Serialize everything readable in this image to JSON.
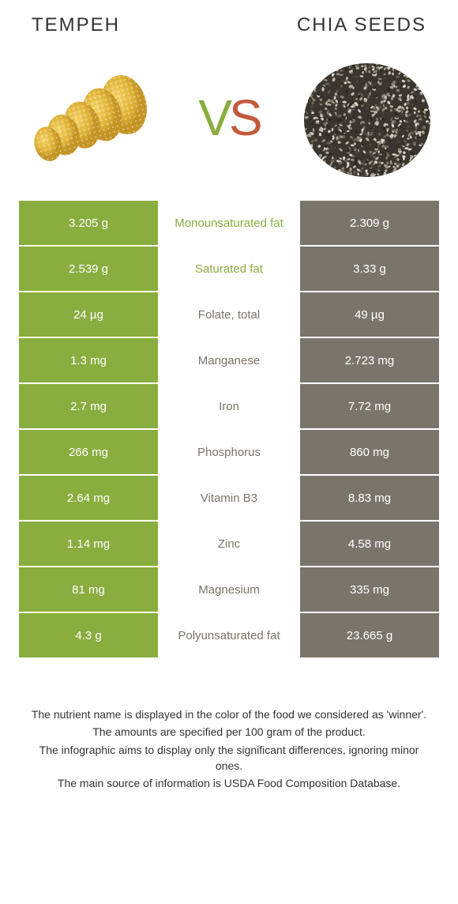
{
  "colors": {
    "left_food": "#8aad3f",
    "right_food": "#7a756a",
    "mid_bg": "#ffffff"
  },
  "header": {
    "left_title": "Tempeh",
    "right_title": "Chia seeds"
  },
  "vs": {
    "v": "V",
    "s": "S"
  },
  "rows": [
    {
      "left": "3.205 g",
      "label": "Monounsaturated fat",
      "right": "2.309 g",
      "winner": "left"
    },
    {
      "left": "2.539 g",
      "label": "Saturated fat",
      "right": "3.33 g",
      "winner": "left"
    },
    {
      "left": "24 µg",
      "label": "Folate, total",
      "right": "49 µg",
      "winner": "right"
    },
    {
      "left": "1.3 mg",
      "label": "Manganese",
      "right": "2.723 mg",
      "winner": "right"
    },
    {
      "left": "2.7 mg",
      "label": "Iron",
      "right": "7.72 mg",
      "winner": "right"
    },
    {
      "left": "266 mg",
      "label": "Phosphorus",
      "right": "860 mg",
      "winner": "right"
    },
    {
      "left": "2.64 mg",
      "label": "Vitamin B3",
      "right": "8.83 mg",
      "winner": "right"
    },
    {
      "left": "1.14 mg",
      "label": "Zinc",
      "right": "4.58 mg",
      "winner": "right"
    },
    {
      "left": "81 mg",
      "label": "Magnesium",
      "right": "335 mg",
      "winner": "right"
    },
    {
      "left": "4.3 g",
      "label": "Polyunsaturated fat",
      "right": "23.665 g",
      "winner": "right"
    }
  ],
  "footer": {
    "line1": "The nutrient name is displayed in the color of the food we considered as 'winner'.",
    "line2": "The amounts are specified per 100 gram of the product.",
    "line3": "The infographic aims to display only the significant differences, ignoring minor ones.",
    "line4": "The main source of information is USDA Food Composition Database."
  }
}
